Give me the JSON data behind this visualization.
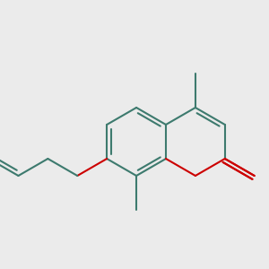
{
  "background_color": "#ebebeb",
  "bond_color": "#3d7a6e",
  "oxygen_color": "#cc0000",
  "bond_width": 1.5,
  "figsize": [
    3.0,
    3.0
  ],
  "dpi": 100,
  "xlim": [
    0,
    300
  ],
  "ylim": [
    0,
    300
  ]
}
